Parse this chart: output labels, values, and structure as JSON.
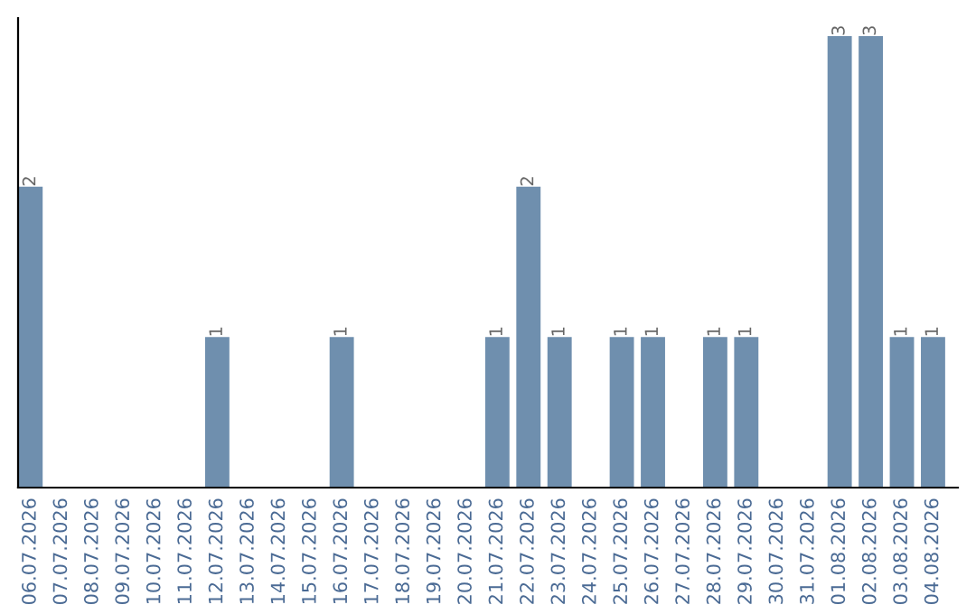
{
  "chart_data": {
    "type": "bar",
    "categories": [
      "06.07.2026",
      "07.07.2026",
      "08.07.2026",
      "09.07.2026",
      "10.07.2026",
      "11.07.2026",
      "12.07.2026",
      "13.07.2026",
      "14.07.2026",
      "15.07.2026",
      "16.07.2026",
      "17.07.2026",
      "18.07.2026",
      "19.07.2026",
      "20.07.2026",
      "21.07.2026",
      "22.07.2026",
      "23.07.2026",
      "24.07.2026",
      "25.07.2026",
      "26.07.2026",
      "27.07.2026",
      "28.07.2026",
      "29.07.2026",
      "30.07.2026",
      "31.07.2026",
      "01.08.2026",
      "02.08.2026",
      "03.08.2026",
      "04.08.2026"
    ],
    "values": [
      2,
      0,
      0,
      0,
      0,
      0,
      1,
      0,
      0,
      0,
      1,
      0,
      0,
      0,
      0,
      1,
      2,
      1,
      0,
      1,
      1,
      0,
      1,
      1,
      0,
      0,
      3,
      3,
      1,
      1
    ],
    "value_labels": [
      "2",
      null,
      null,
      null,
      null,
      null,
      "1",
      null,
      null,
      null,
      "1",
      null,
      null,
      null,
      null,
      "1",
      "2",
      "1",
      null,
      "1",
      "1",
      null,
      "1",
      "1",
      null,
      null,
      "3",
      "3",
      "1",
      "1"
    ],
    "color": "#6f8fae",
    "tick_labels": "x",
    "grid": false,
    "legend": false
  }
}
